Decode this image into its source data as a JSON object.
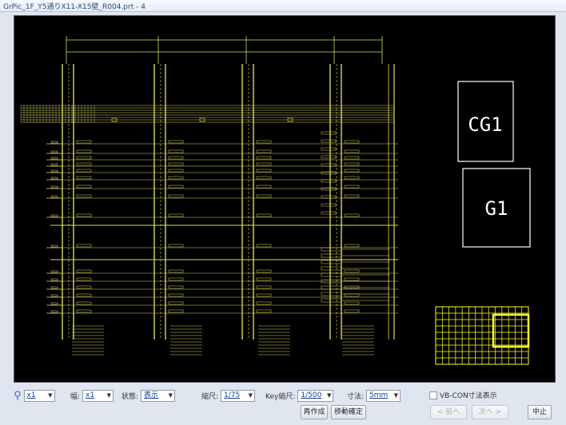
{
  "window": {
    "title": "GrPic_1F_Y5通りX11-X15壁_R004.prt - 4"
  },
  "canvas": {
    "label_top": "CG1",
    "label_bottom": "G1",
    "colors": {
      "background": "#000000",
      "drawing": "#d8d860",
      "label": "#ffffff"
    }
  },
  "toolbar": {
    "zoom_icon": "magnifier-icon",
    "zoom_value": "x1",
    "width_label": "幅:",
    "width_value": "x1",
    "state_label": "状態:",
    "state_value": "表示",
    "scale_label": "縮尺:",
    "scale_value": "1/75",
    "key_scale_label": "Key縮尺:",
    "key_scale_value": "1/500",
    "dim_label": "寸法:",
    "dim_value": "5mm",
    "checkbox_label": "VB-CON寸法表示",
    "redraw_button": "再作成",
    "move_button": "移動確定",
    "prev_button": "< 前へ",
    "next_button": "次へ >",
    "stop_button": "中止"
  }
}
